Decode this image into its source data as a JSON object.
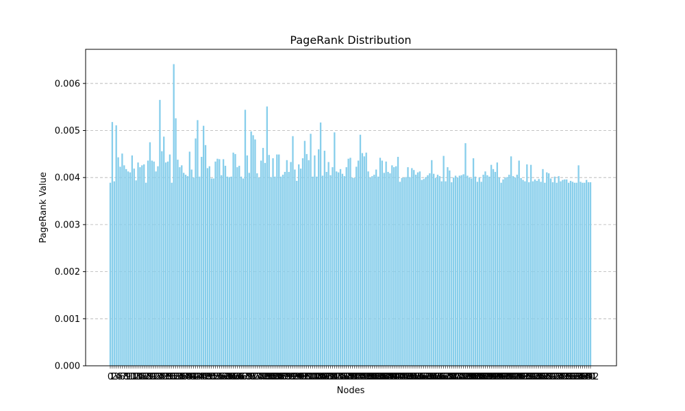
{
  "chart_data": {
    "type": "bar",
    "title": "PageRank Distribution",
    "xlabel": "Nodes",
    "ylabel": "PageRank Value",
    "ylim": [
      0,
      0.0065
    ],
    "yticks": [
      "0.000",
      "0.001",
      "0.002",
      "0.003",
      "0.004",
      "0.005",
      "0.006"
    ],
    "grid": "horizontal dashed",
    "bar_color": "#87ceeb",
    "x_start": 0,
    "values": [
      0.00389,
      0.00518,
      0.00392,
      0.00511,
      0.00443,
      0.00423,
      0.00451,
      0.00426,
      0.00418,
      0.00413,
      0.00411,
      0.00447,
      0.00419,
      0.00394,
      0.00432,
      0.00422,
      0.00426,
      0.00428,
      0.00389,
      0.00436,
      0.00475,
      0.00436,
      0.00434,
      0.00413,
      0.00424,
      0.00565,
      0.00456,
      0.00487,
      0.00432,
      0.00434,
      0.00449,
      0.00389,
      0.00641,
      0.00526,
      0.00438,
      0.00422,
      0.00426,
      0.0041,
      0.00406,
      0.00403,
      0.00455,
      0.00417,
      0.004,
      0.00483,
      0.00522,
      0.00402,
      0.00444,
      0.0051,
      0.00469,
      0.0042,
      0.00424,
      0.00398,
      0.00398,
      0.00434,
      0.0044,
      0.00439,
      0.00405,
      0.00439,
      0.00425,
      0.00402,
      0.00401,
      0.00402,
      0.00453,
      0.0045,
      0.00422,
      0.00425,
      0.00402,
      0.00398,
      0.00544,
      0.00447,
      0.0041,
      0.00498,
      0.0049,
      0.00481,
      0.00409,
      0.004,
      0.00436,
      0.00463,
      0.00431,
      0.00551,
      0.00448,
      0.00401,
      0.00441,
      0.00402,
      0.00449,
      0.00449,
      0.00402,
      0.00406,
      0.00412,
      0.00437,
      0.00412,
      0.00433,
      0.00488,
      0.00417,
      0.00393,
      0.00428,
      0.00419,
      0.00441,
      0.00478,
      0.0045,
      0.00437,
      0.00493,
      0.00402,
      0.00447,
      0.00402,
      0.0046,
      0.00517,
      0.00404,
      0.00457,
      0.00412,
      0.00433,
      0.00405,
      0.00422,
      0.00496,
      0.00413,
      0.00411,
      0.00418,
      0.00408,
      0.00403,
      0.00422,
      0.0044,
      0.00442,
      0.004,
      0.00399,
      0.00423,
      0.00436,
      0.00491,
      0.00452,
      0.00445,
      0.00453,
      0.00413,
      0.004,
      0.00403,
      0.00406,
      0.00417,
      0.00402,
      0.00442,
      0.00436,
      0.0041,
      0.00434,
      0.00412,
      0.00409,
      0.00426,
      0.00422,
      0.00424,
      0.00444,
      0.00391,
      0.00399,
      0.004,
      0.00401,
      0.00422,
      0.00401,
      0.0042,
      0.00416,
      0.00406,
      0.00411,
      0.00413,
      0.00395,
      0.00397,
      0.00401,
      0.00405,
      0.00409,
      0.00437,
      0.00408,
      0.00399,
      0.00406,
      0.00403,
      0.00392,
      0.00446,
      0.00392,
      0.00422,
      0.00415,
      0.0039,
      0.004,
      0.00404,
      0.004,
      0.00404,
      0.00405,
      0.00407,
      0.00473,
      0.00404,
      0.004,
      0.00398,
      0.00441,
      0.00402,
      0.00391,
      0.004,
      0.00391,
      0.00406,
      0.00413,
      0.00405,
      0.00402,
      0.00427,
      0.00418,
      0.00412,
      0.00432,
      0.004,
      0.00389,
      0.00396,
      0.004,
      0.00401,
      0.00406,
      0.00445,
      0.00403,
      0.004,
      0.00406,
      0.00436,
      0.00399,
      0.00395,
      0.00392,
      0.00428,
      0.0039,
      0.00427,
      0.00392,
      0.00396,
      0.00393,
      0.00397,
      0.00391,
      0.00418,
      0.00389,
      0.00411,
      0.00409,
      0.00398,
      0.0039,
      0.00402,
      0.00389,
      0.00403,
      0.00392,
      0.00395,
      0.00396,
      0.00396,
      0.00389,
      0.00393,
      0.00391,
      0.00389,
      0.00389,
      0.00426,
      0.00391,
      0.00389,
      0.00389,
      0.00395,
      0.0039,
      0.0039
    ]
  }
}
